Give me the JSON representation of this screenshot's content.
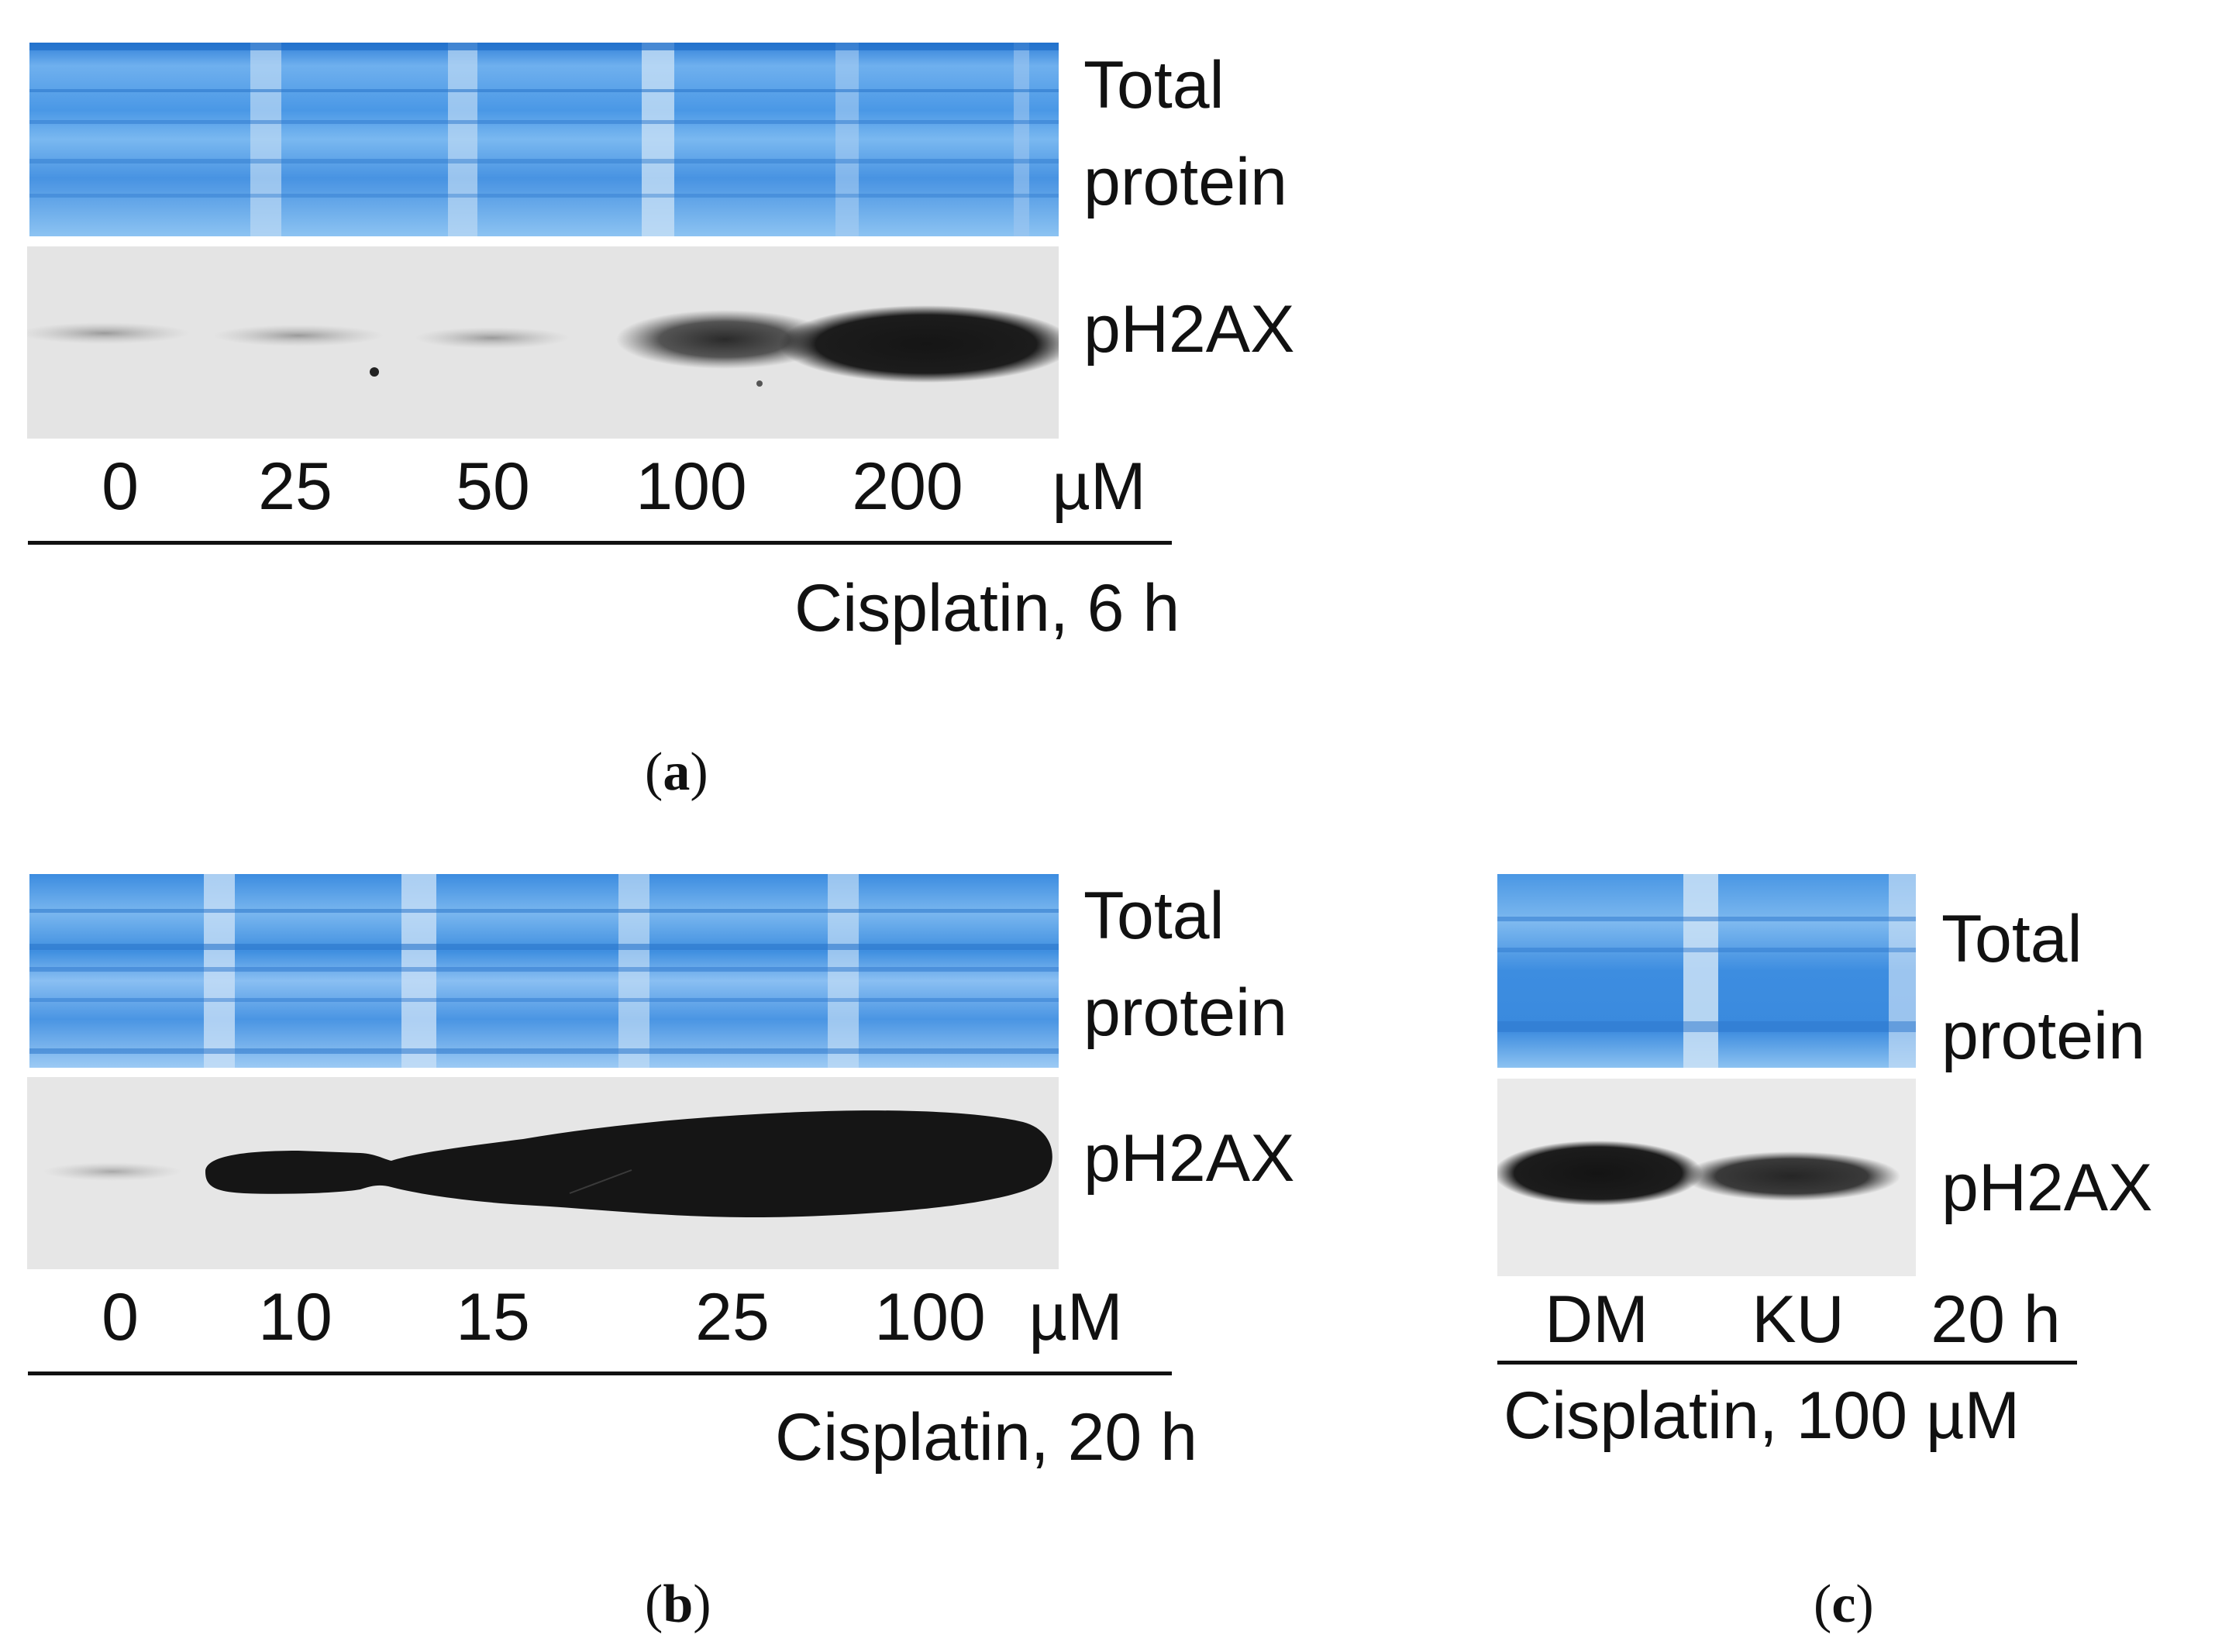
{
  "panels": [
    {
      "id": "a",
      "letter": "a",
      "total_protein_label": [
        "Total",
        "protein"
      ],
      "band_label": "pH2AX",
      "lanes": [
        "0",
        "25",
        "50",
        "100",
        "200"
      ],
      "unit": "µM",
      "condition": "Cisplatin, 6 h",
      "band_intensity": [
        0.12,
        0.18,
        0.2,
        0.7,
        1.0
      ]
    },
    {
      "id": "b",
      "letter": "b",
      "total_protein_label": [
        "Total",
        "protein"
      ],
      "band_label": "pH2AX",
      "lanes": [
        "0",
        "10",
        "15",
        "25",
        "100"
      ],
      "unit": "µM",
      "condition": "Cisplatin, 20 h",
      "band_intensity": [
        0.1,
        0.9,
        0.95,
        1.0,
        1.0
      ]
    },
    {
      "id": "c",
      "letter": "c",
      "total_protein_label": [
        "Total",
        "protein"
      ],
      "band_label": "pH2AX",
      "lanes": [
        "DM",
        "KU"
      ],
      "time": "20 h",
      "condition": "Cisplatin, 100 µM",
      "band_intensity": [
        0.95,
        0.7
      ]
    }
  ],
  "colors": {
    "stain_blue": "#3f8fe0",
    "stain_light": "#bcd9f4",
    "film_bg": "#e9e9e9",
    "band_dark": "#151515"
  }
}
